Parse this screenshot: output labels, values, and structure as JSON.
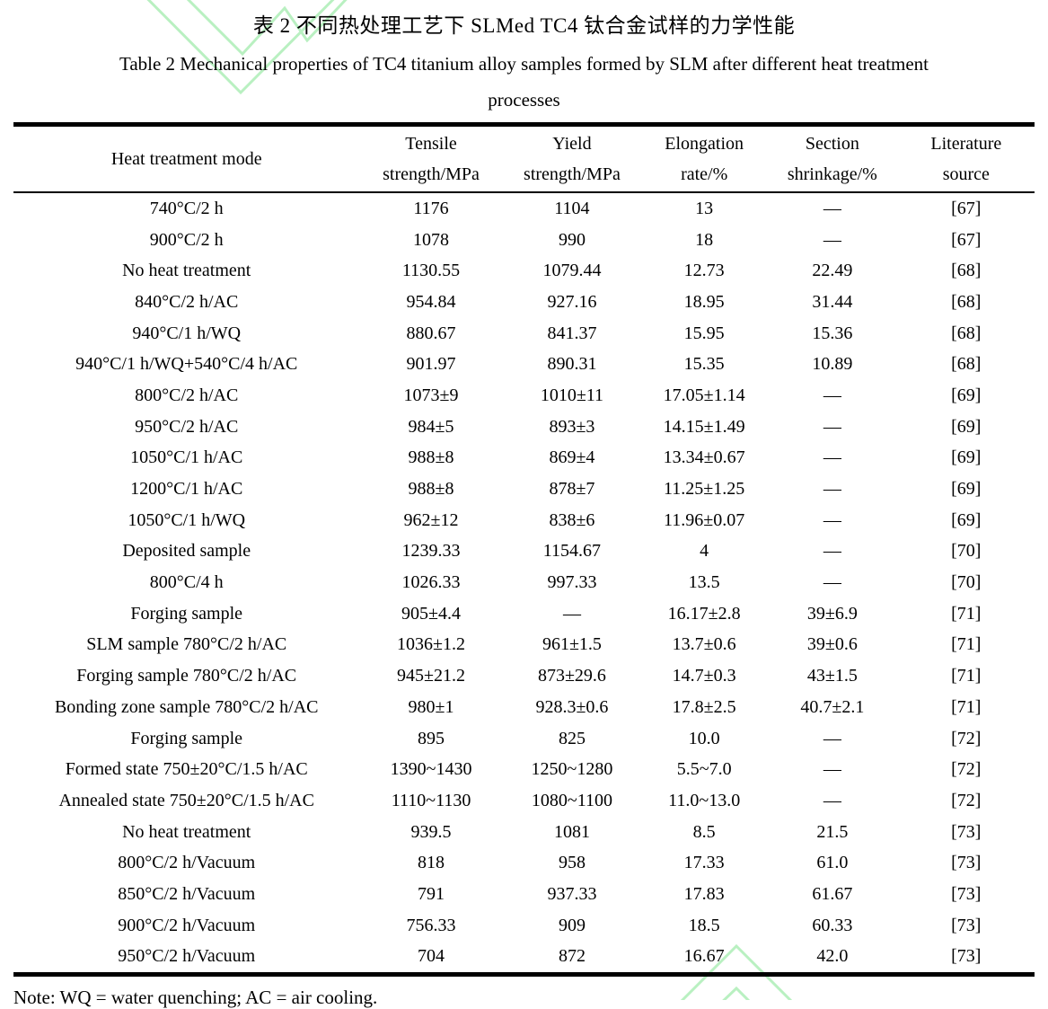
{
  "page": {
    "title_cn": "表 2 不同热处理工艺下 SLMed TC4 钛合金试样的力学性能",
    "title_en_line1": "Table 2 Mechanical properties of TC4 titanium alloy samples formed by SLM after different heat treatment",
    "title_en_line2": "processes",
    "note": "Note: WQ = water quenching; AC = air cooling."
  },
  "table": {
    "headers": [
      {
        "line1": "Heat treatment mode",
        "line2": ""
      },
      {
        "line1": "Tensile",
        "line2": "strength/MPa"
      },
      {
        "line1": "Yield",
        "line2": "strength/MPa"
      },
      {
        "line1": "Elongation",
        "line2": "rate/%"
      },
      {
        "line1": "Section",
        "line2": "shrinkage/%"
      },
      {
        "line1": "Literature",
        "line2": "source"
      }
    ],
    "rows": [
      [
        "740°C/2 h",
        "1176",
        "1104",
        "13",
        "—",
        "[67]"
      ],
      [
        "900°C/2 h",
        "1078",
        "990",
        "18",
        "—",
        "[67]"
      ],
      [
        "No heat treatment",
        "1130.55",
        "1079.44",
        "12.73",
        "22.49",
        "[68]"
      ],
      [
        "840°C/2 h/AC",
        "954.84",
        "927.16",
        "18.95",
        "31.44",
        "[68]"
      ],
      [
        "940°C/1 h/WQ",
        "880.67",
        "841.37",
        "15.95",
        "15.36",
        "[68]"
      ],
      [
        "940°C/1 h/WQ+540°C/4 h/AC",
        "901.97",
        "890.31",
        "15.35",
        "10.89",
        "[68]"
      ],
      [
        "800°C/2 h/AC",
        "1073±9",
        "1010±11",
        "17.05±1.14",
        "—",
        "[69]"
      ],
      [
        "950°C/2 h/AC",
        "984±5",
        "893±3",
        "14.15±1.49",
        "—",
        "[69]"
      ],
      [
        "1050°C/1 h/AC",
        "988±8",
        "869±4",
        "13.34±0.67",
        "—",
        "[69]"
      ],
      [
        "1200°C/1 h/AC",
        "988±8",
        "878±7",
        "11.25±1.25",
        "—",
        "[69]"
      ],
      [
        "1050°C/1 h/WQ",
        "962±12",
        "838±6",
        "11.96±0.07",
        "—",
        "[69]"
      ],
      [
        "Deposited sample",
        "1239.33",
        "1154.67",
        "4",
        "—",
        "[70]"
      ],
      [
        "800°C/4 h",
        "1026.33",
        "997.33",
        "13.5",
        "—",
        "[70]"
      ],
      [
        "Forging sample",
        "905±4.4",
        "—",
        "16.17±2.8",
        "39±6.9",
        "[71]"
      ],
      [
        "SLM sample 780°C/2 h/AC",
        "1036±1.2",
        "961±1.5",
        "13.7±0.6",
        "39±0.6",
        "[71]"
      ],
      [
        "Forging sample 780°C/2 h/AC",
        "945±21.2",
        "873±29.6",
        "14.7±0.3",
        "43±1.5",
        "[71]"
      ],
      [
        "Bonding zone sample 780°C/2 h/AC",
        "980±1",
        "928.3±0.6",
        "17.8±2.5",
        "40.7±2.1",
        "[71]"
      ],
      [
        "Forging sample",
        "895",
        "825",
        "10.0",
        "—",
        "[72]"
      ],
      [
        "Formed state 750±20°C/1.5 h/AC",
        "1390~1430",
        "1250~1280",
        "5.5~7.0",
        "—",
        "[72]"
      ],
      [
        "Annealed state 750±20°C/1.5 h/AC",
        "1110~1130",
        "1080~1100",
        "11.0~13.0",
        "—",
        "[72]"
      ],
      [
        "No heat treatment",
        "939.5",
        "1081",
        "8.5",
        "21.5",
        "[73]"
      ],
      [
        "800°C/2 h/Vacuum",
        "818",
        "958",
        "17.33",
        "61.0",
        "[73]"
      ],
      [
        "850°C/2 h/Vacuum",
        "791",
        "937.33",
        "17.83",
        "61.67",
        "[73]"
      ],
      [
        "900°C/2 h/Vacuum",
        "756.33",
        "909",
        "18.5",
        "60.33",
        "[73]"
      ],
      [
        "950°C/2 h/Vacuum",
        "704",
        "872",
        "16.67",
        "42.0",
        "[73]"
      ]
    ]
  },
  "style": {
    "watermark_color": "#b9f0c1",
    "text_color": "#000000",
    "background": "#ffffff"
  }
}
